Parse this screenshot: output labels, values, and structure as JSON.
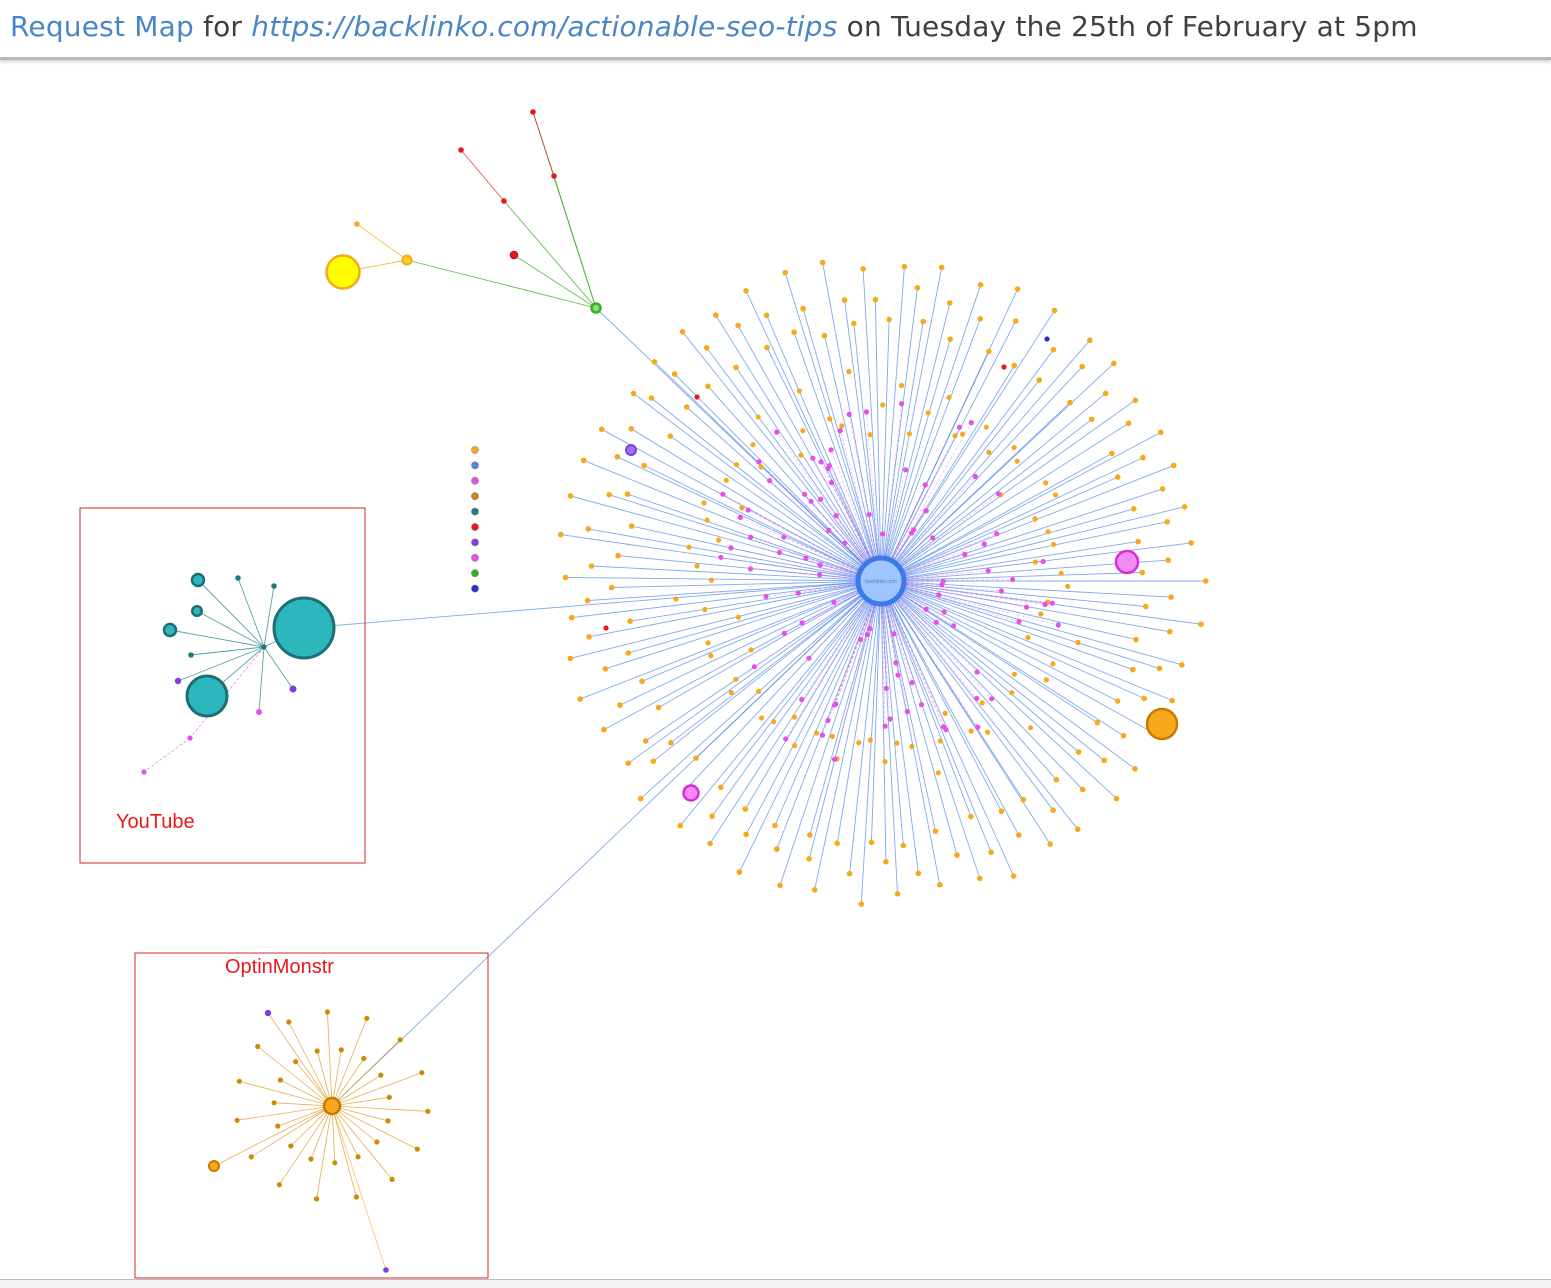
{
  "header": {
    "prefix": "Request Map",
    "for_text": " for ",
    "url": "https://backlinko.com/actionable-seo-tips",
    "suffix": " on Tuesday the 25th of February at 5pm"
  },
  "map": {
    "center_node_label": "backlinko.com",
    "annotations": [
      {
        "label": "YouTube"
      },
      {
        "label": "OptinMonstr"
      }
    ]
  },
  "colors": {
    "orange": "#f7a81b",
    "blue_edge": "#4a86e8",
    "blue_center": "#9ec5fe",
    "magenta": "#e84ee8",
    "teal": "#2bb7bd",
    "teal_dark": "#1f7a80",
    "red": "#e8191c",
    "green": "#35b020",
    "yellow": "#ffff00",
    "purple": "#7e3fe0",
    "gold": "#d08a00",
    "annotation_border": "#d62728"
  }
}
